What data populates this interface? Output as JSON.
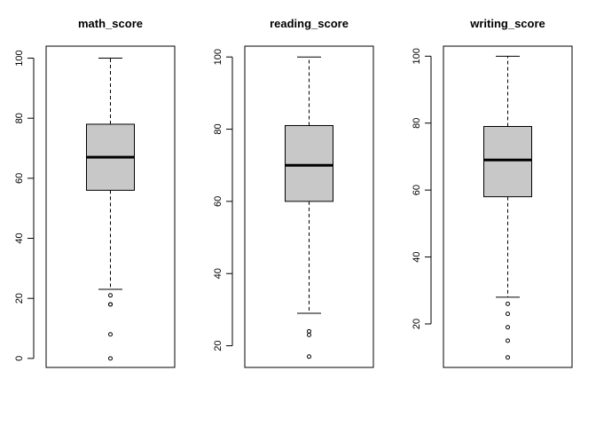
{
  "chart_data": [
    {
      "type": "box",
      "title": "math_score",
      "xlabel": "",
      "ylabel": "",
      "ylim": [
        -3,
        104
      ],
      "yticks": [
        0,
        20,
        40,
        60,
        80,
        100
      ],
      "ytick_labels": [
        "0",
        "20",
        "40",
        "60",
        "80",
        "100"
      ],
      "grid": false,
      "box_color": "#c8c8c8",
      "stats": {
        "whisker_low": 23,
        "q1": 56,
        "median": 67,
        "q3": 78,
        "whisker_high": 100
      },
      "outliers": [
        21,
        18,
        18,
        8,
        0
      ]
    },
    {
      "type": "box",
      "title": "reading_score",
      "xlabel": "",
      "ylabel": "",
      "ylim": [
        14,
        103
      ],
      "yticks": [
        20,
        40,
        60,
        80,
        100
      ],
      "ytick_labels": [
        "20",
        "40",
        "60",
        "80",
        "100"
      ],
      "grid": false,
      "box_color": "#c8c8c8",
      "stats": {
        "whisker_low": 29,
        "q1": 60,
        "median": 70,
        "q3": 81,
        "whisker_high": 100
      },
      "outliers": [
        24,
        23,
        17
      ]
    },
    {
      "type": "box",
      "title": "writing_score",
      "xlabel": "",
      "ylabel": "",
      "ylim": [
        7,
        103
      ],
      "yticks": [
        20,
        40,
        60,
        80,
        100
      ],
      "ytick_labels": [
        "20",
        "40",
        "60",
        "80",
        "100"
      ],
      "grid": false,
      "box_color": "#c8c8c8",
      "stats": {
        "whisker_low": 28,
        "q1": 58,
        "median": 69,
        "q3": 79,
        "whisker_high": 100
      },
      "outliers": [
        26,
        23,
        19,
        15,
        10
      ]
    }
  ]
}
